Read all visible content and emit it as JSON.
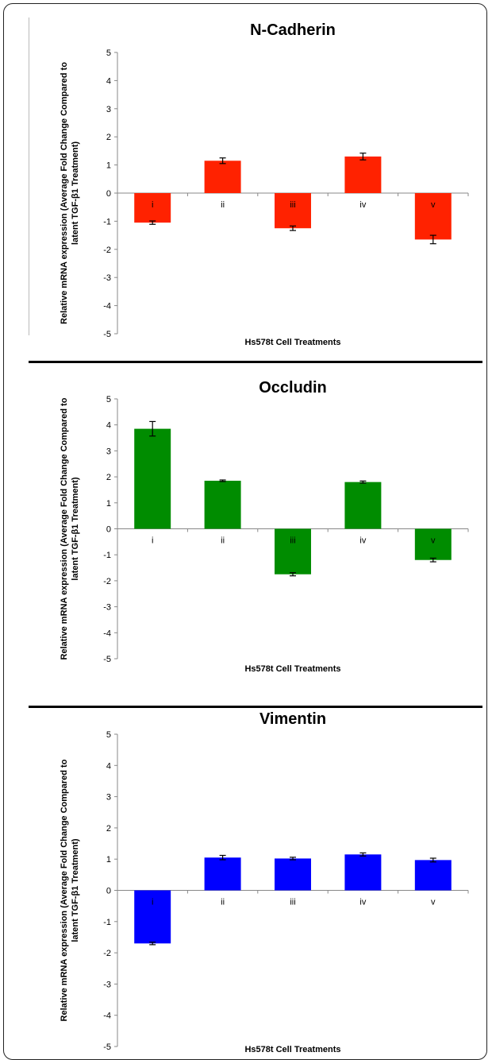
{
  "chart_data": [
    {
      "type": "bar",
      "title": "N-Cadherin",
      "xlabel": "Hs578t Cell Treatments",
      "ylabel": "Relative mRNA expression (Average Fold Change  Compared to latent TGF-β1 Treatment)",
      "categories": [
        "i",
        "ii",
        "iii",
        "iv",
        "v"
      ],
      "values": [
        -1.05,
        1.15,
        -1.25,
        1.3,
        -1.65
      ],
      "errors": [
        0.06,
        0.1,
        0.08,
        0.12,
        0.15
      ],
      "ylim": [
        -5,
        5
      ],
      "yticks": [
        "5",
        "4",
        "3",
        "2",
        "1",
        "0",
        "-1",
        "-2",
        "-3",
        "-4",
        "-5"
      ],
      "color": "#ff2200"
    },
    {
      "type": "bar",
      "title": "Occludin",
      "xlabel": "Hs578t Cell Treatments",
      "ylabel": "Relative mRNA expression (Average Fold Change  Compared to latent TGF-β1 Treatment)",
      "categories": [
        "i",
        "ii",
        "iii",
        "iv",
        "v"
      ],
      "values": [
        3.85,
        1.85,
        -1.75,
        1.8,
        -1.2
      ],
      "errors": [
        0.28,
        0.03,
        0.06,
        0.04,
        0.07
      ],
      "ylim": [
        -5,
        5
      ],
      "yticks": [
        "5",
        "4",
        "3",
        "2",
        "1",
        "0",
        "-1",
        "-2",
        "-3",
        "-4",
        "-5"
      ],
      "color": "#008c00"
    },
    {
      "type": "bar",
      "title": "Vimentin",
      "xlabel": "Hs578t Cell Treatments",
      "ylabel": "Relative mRNA expression (Average Fold Change  Compared to latent TGF-β1 Treatment)",
      "categories": [
        "i",
        "ii",
        "iii",
        "iv",
        "v"
      ],
      "values": [
        -1.7,
        1.05,
        1.02,
        1.15,
        0.97
      ],
      "errors": [
        0.04,
        0.07,
        0.04,
        0.05,
        0.06
      ],
      "ylim": [
        -5,
        5
      ],
      "yticks": [
        "5",
        "4",
        "3",
        "2",
        "1",
        "0",
        "-1",
        "-2",
        "-3",
        "-4",
        "-5"
      ],
      "color": "#0000ff"
    }
  ]
}
